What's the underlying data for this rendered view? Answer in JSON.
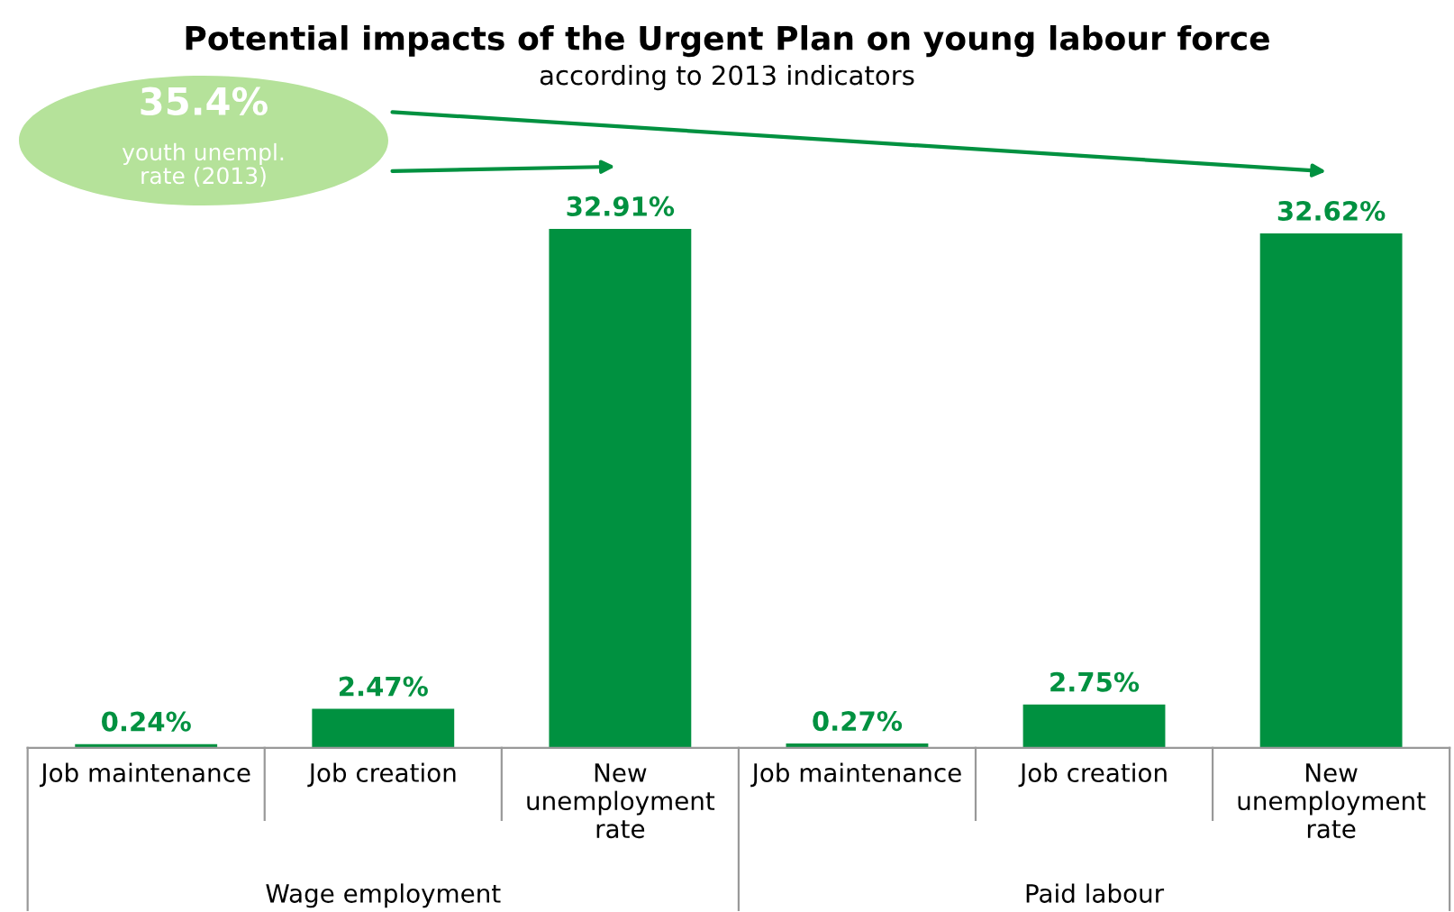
{
  "chart_data": {
    "type": "bar",
    "title": "Potential impacts of the Urgent Plan on young labour force",
    "subtitle": "according to 2013 indicators",
    "categories": [
      "Job maintenance",
      "Job creation",
      "New\nunemployment\nrate",
      "Job maintenance",
      "Job creation",
      "New\nunemployment\nrate"
    ],
    "values": [
      0.24,
      2.47,
      32.91,
      0.27,
      2.75,
      32.62
    ],
    "value_labels": [
      "0.24%",
      "2.47%",
      "32.91%",
      "0.27%",
      "2.75%",
      "32.62%"
    ],
    "color": "#009140",
    "grid": false,
    "annotations": [
      "35.4%",
      "youth unempl.\nrate (2013)",
      "Wage employment",
      "Paid labour"
    ]
  }
}
